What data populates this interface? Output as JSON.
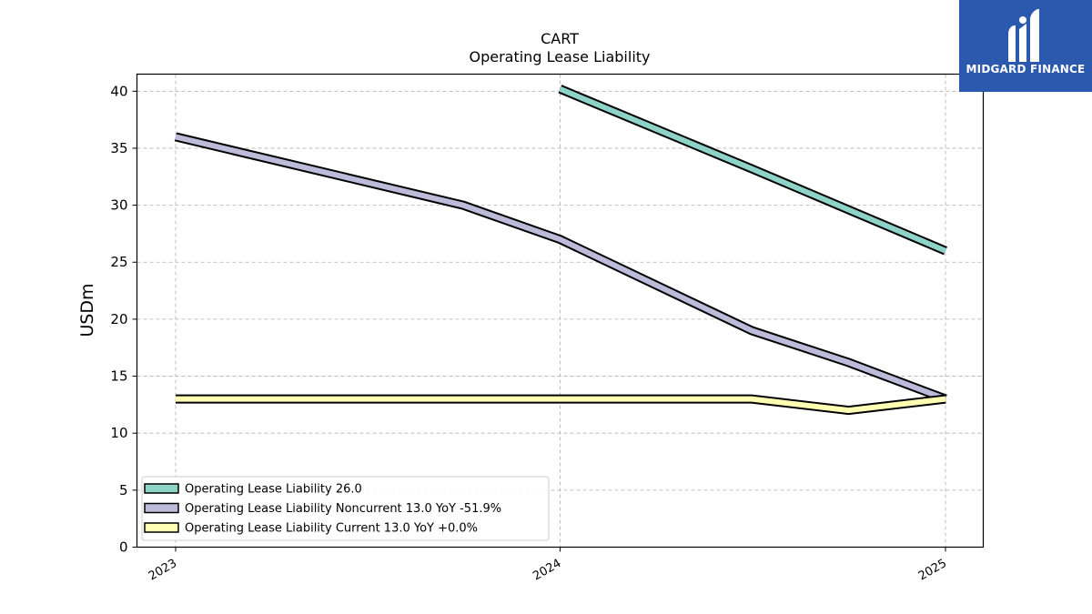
{
  "brand": {
    "name": "MIDGARD FINANCE",
    "logo_icon": "midgard-logo-icon",
    "background": "#2a59ad"
  },
  "chart_data": {
    "type": "line",
    "title": "CART",
    "subtitle": "Operating Lease Liability",
    "xlabel": "",
    "ylabel": "USDm",
    "ylim": [
      0,
      41.5
    ],
    "yticks": [
      0,
      5,
      10,
      15,
      20,
      25,
      30,
      35,
      40
    ],
    "xticks": [
      "2023",
      "2024",
      "2025"
    ],
    "grid": true,
    "legend_position": "lower-left",
    "series": [
      {
        "name": "Operating Lease Liability",
        "legend_label": "Operating Lease Liability  26.0",
        "color": "#8dd3c7",
        "points": [
          [
            "2024-01-01",
            40.2
          ],
          [
            "2024-07-01",
            33.2
          ],
          [
            "2024-10-01",
            29.6
          ],
          [
            "2025-01-01",
            26.0
          ]
        ]
      },
      {
        "name": "Operating Lease Liability Noncurrent",
        "legend_label": "Operating Lease Liability Noncurrent  13.0 YoY -51.9%",
        "color": "#bebada",
        "points": [
          [
            "2023-01-01",
            36.0
          ],
          [
            "2023-10-01",
            30.0
          ],
          [
            "2024-01-01",
            27.0
          ],
          [
            "2024-07-01",
            19.0
          ],
          [
            "2024-10-01",
            16.2
          ],
          [
            "2025-01-01",
            13.0
          ]
        ]
      },
      {
        "name": "Operating Lease Liability Current",
        "legend_label": "Operating Lease Liability Current  13.0 YoY +0.0%",
        "color": "#ffffb3",
        "points": [
          [
            "2023-01-01",
            13.0
          ],
          [
            "2023-10-01",
            13.0
          ],
          [
            "2024-01-01",
            13.0
          ],
          [
            "2024-07-01",
            13.0
          ],
          [
            "2024-10-01",
            12.0
          ],
          [
            "2025-01-01",
            13.0
          ]
        ]
      }
    ]
  }
}
